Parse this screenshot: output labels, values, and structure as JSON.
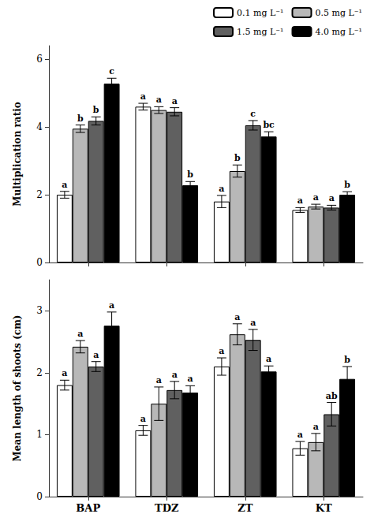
{
  "chart_data": [
    {
      "type": "bar",
      "categories": [
        "BAP",
        "TDZ",
        "ZT",
        "KT"
      ],
      "ylabel": "Multiplication ratio",
      "ylim": [
        0,
        6.4
      ],
      "yticks": [
        0,
        2,
        4,
        6
      ],
      "grid": false,
      "legend": "upper right",
      "tick_labels": "y",
      "series": [
        {
          "name": "0.1 mg L⁻¹",
          "color": "#ffffff",
          "values": [
            2.0,
            4.6,
            1.8,
            1.55
          ],
          "errors": [
            0.1,
            0.1,
            0.18,
            0.07
          ],
          "annotations": [
            "a",
            "a",
            "a",
            "a"
          ]
        },
        {
          "name": "0.5 mg L⁻¹",
          "color": "#b8b8b8",
          "values": [
            3.95,
            4.5,
            2.7,
            1.65
          ],
          "errors": [
            0.11,
            0.1,
            0.18,
            0.07
          ],
          "annotations": [
            "b",
            "a",
            "b",
            "a"
          ]
        },
        {
          "name": "1.5 mg L⁻¹",
          "color": "#606060",
          "values": [
            4.18,
            4.45,
            4.05,
            1.62
          ],
          "errors": [
            0.12,
            0.12,
            0.14,
            0.07
          ],
          "annotations": [
            "b",
            "a",
            "c",
            "a"
          ]
        },
        {
          "name": "4.0 mg L⁻¹",
          "color": "#000000",
          "values": [
            5.28,
            2.28,
            3.72,
            2.0
          ],
          "errors": [
            0.16,
            0.11,
            0.14,
            0.09
          ],
          "annotations": [
            "c",
            "b",
            "bc",
            "b"
          ]
        }
      ]
    },
    {
      "type": "bar",
      "categories": [
        "BAP",
        "TDZ",
        "ZT",
        "KT"
      ],
      "ylabel": "Mean length of shoots (cm)",
      "ylim": [
        0,
        3.5
      ],
      "yticks": [
        0,
        1,
        2,
        3
      ],
      "grid": false,
      "legend": false,
      "series": [
        {
          "name": "0.1 mg L⁻¹",
          "color": "#ffffff",
          "values": [
            1.8,
            1.07,
            2.1,
            0.78
          ],
          "errors": [
            0.08,
            0.08,
            0.14,
            0.11
          ],
          "annotations": [
            "a",
            "a",
            "a",
            "a"
          ]
        },
        {
          "name": "0.5 mg L⁻¹",
          "color": "#b8b8b8",
          "values": [
            2.42,
            1.5,
            2.62,
            0.88
          ],
          "errors": [
            0.1,
            0.27,
            0.17,
            0.14
          ],
          "annotations": [
            "a",
            "a",
            "a",
            "a"
          ]
        },
        {
          "name": "1.5 mg L⁻¹",
          "color": "#606060",
          "values": [
            2.1,
            1.72,
            2.53,
            1.33
          ],
          "errors": [
            0.08,
            0.14,
            0.17,
            0.19
          ],
          "annotations": [
            "a",
            "a",
            "a",
            "ab"
          ]
        },
        {
          "name": "4.0 mg L⁻¹",
          "color": "#000000",
          "values": [
            2.76,
            1.68,
            2.02,
            1.9
          ],
          "errors": [
            0.22,
            0.11,
            0.09,
            0.2
          ],
          "annotations": [
            "a",
            "a",
            "a",
            "b"
          ]
        }
      ]
    }
  ]
}
